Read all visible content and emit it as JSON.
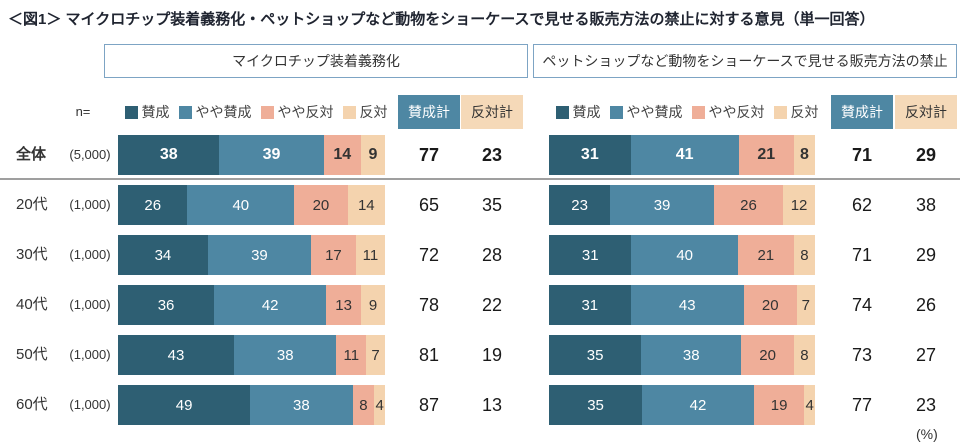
{
  "title": "＜図1＞ マイクロチップ装着義務化・ペットショップなど動物をショーケースで見せる販売方法の禁止に対する意見（単一回答）",
  "n_header": "n=",
  "unit": "(%)",
  "agree_total_label": "賛成計",
  "oppose_total_label": "反対計",
  "colors": {
    "agree": "#2e5f73",
    "somewhat_agree": "#4e87a3",
    "somewhat_oppose": "#efae98",
    "oppose": "#f4d3ae",
    "agree_total_bg": "#4e87a3",
    "oppose_total_bg": "#f5d9b8"
  },
  "legend_items": [
    {
      "key": "agree",
      "label": "賛成",
      "text_color": "#ffffff"
    },
    {
      "key": "somewhat_agree",
      "label": "やや賛成",
      "text_color": "#ffffff"
    },
    {
      "key": "somewhat_oppose",
      "label": "やや反対",
      "text_color": "#333333"
    },
    {
      "key": "oppose",
      "label": "反対",
      "text_color": "#333333"
    }
  ],
  "rows": {
    "labels": [
      "全体",
      "20代",
      "30代",
      "40代",
      "50代",
      "60代"
    ],
    "n_values": [
      "(5,000)",
      "(1,000)",
      "(1,000)",
      "(1,000)",
      "(1,000)",
      "(1,000)"
    ]
  },
  "chart_data": [
    {
      "type": "bar",
      "stacked": true,
      "orientation": "horizontal",
      "title": "マイクロチップ装着義務化",
      "categories": [
        "全体",
        "20代",
        "30代",
        "40代",
        "50代",
        "60代"
      ],
      "n": [
        5000,
        1000,
        1000,
        1000,
        1000,
        1000
      ],
      "series": [
        {
          "name": "賛成",
          "values": [
            38,
            26,
            34,
            36,
            43,
            49
          ]
        },
        {
          "name": "やや賛成",
          "values": [
            39,
            40,
            39,
            42,
            38,
            38
          ]
        },
        {
          "name": "やや反対",
          "values": [
            14,
            20,
            17,
            13,
            11,
            8
          ]
        },
        {
          "name": "反対",
          "values": [
            9,
            14,
            11,
            9,
            7,
            4
          ]
        }
      ],
      "agree_totals": [
        77,
        65,
        72,
        78,
        81,
        87
      ],
      "oppose_totals": [
        23,
        35,
        28,
        22,
        19,
        13
      ],
      "xlim": [
        0,
        100
      ],
      "unit": "%"
    },
    {
      "type": "bar",
      "stacked": true,
      "orientation": "horizontal",
      "title": "ペットショップなど動物をショーケースで見せる販売方法の禁止",
      "categories": [
        "全体",
        "20代",
        "30代",
        "40代",
        "50代",
        "60代"
      ],
      "n": [
        5000,
        1000,
        1000,
        1000,
        1000,
        1000
      ],
      "series": [
        {
          "name": "賛成",
          "values": [
            31,
            23,
            31,
            31,
            35,
            35
          ]
        },
        {
          "name": "やや賛成",
          "values": [
            41,
            39,
            40,
            43,
            38,
            42
          ]
        },
        {
          "name": "やや反対",
          "values": [
            21,
            26,
            21,
            20,
            20,
            19
          ]
        },
        {
          "name": "反対",
          "values": [
            8,
            12,
            8,
            7,
            8,
            4
          ]
        }
      ],
      "agree_totals": [
        71,
        62,
        71,
        74,
        73,
        77
      ],
      "oppose_totals": [
        29,
        38,
        29,
        26,
        27,
        23
      ],
      "xlim": [
        0,
        100
      ],
      "unit": "%"
    }
  ]
}
